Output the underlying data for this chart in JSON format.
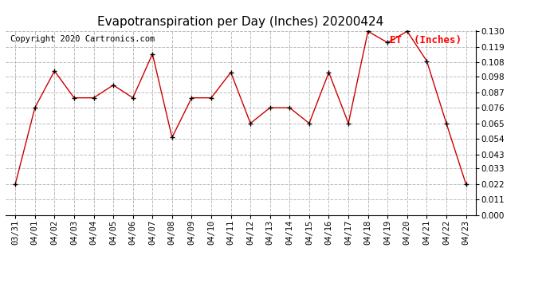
{
  "title": "Evapotranspiration per Day (Inches) 20200424",
  "copyright_text": "Copyright 2020 Cartronics.com",
  "legend_label": "ET  (Inches)",
  "dates": [
    "03/31",
    "04/01",
    "04/02",
    "04/03",
    "04/04",
    "04/05",
    "04/06",
    "04/07",
    "04/08",
    "04/09",
    "04/10",
    "04/11",
    "04/12",
    "04/13",
    "04/14",
    "04/15",
    "04/16",
    "04/17",
    "04/18",
    "04/19",
    "04/20",
    "04/21",
    "04/22",
    "04/23"
  ],
  "values": [
    0.022,
    0.076,
    0.102,
    0.083,
    0.083,
    0.092,
    0.083,
    0.114,
    0.055,
    0.083,
    0.083,
    0.101,
    0.065,
    0.076,
    0.076,
    0.065,
    0.101,
    0.065,
    0.13,
    0.122,
    0.13,
    0.109,
    0.065,
    0.022
  ],
  "line_color": "#cc0000",
  "marker_color": "#000000",
  "background_color": "#ffffff",
  "grid_color": "#bbbbbb",
  "ylim_min": 0.0,
  "ylim_max": 0.13,
  "yticks": [
    0.0,
    0.011,
    0.022,
    0.033,
    0.043,
    0.054,
    0.065,
    0.076,
    0.087,
    0.098,
    0.108,
    0.119,
    0.13
  ],
  "title_fontsize": 11,
  "tick_fontsize": 7.5,
  "legend_fontsize": 9,
  "copyright_fontsize": 7.5
}
